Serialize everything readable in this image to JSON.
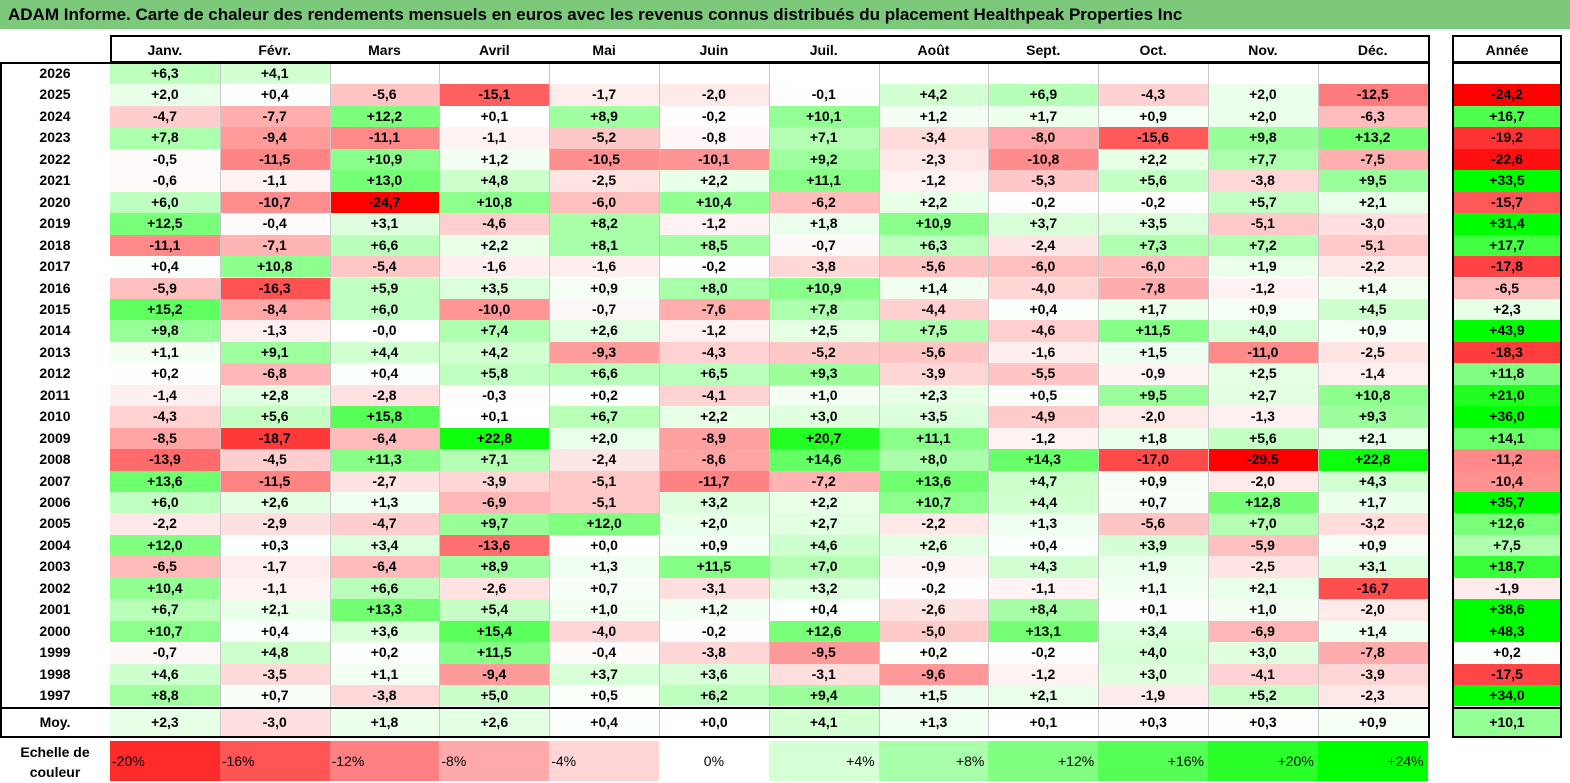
{
  "title": "ADAM Informe. Carte de chaleur des rendements mensuels en euros avec les revenus connus distribués du placement Healthpeak Properties Inc",
  "chart_data": {
    "type": "heatmap",
    "columns": [
      "Janv.",
      "Févr.",
      "Mars",
      "Avril",
      "Mai",
      "Juin",
      "Juil.",
      "Août",
      "Sept.",
      "Oct.",
      "Nov.",
      "Déc."
    ],
    "year_column": "Année",
    "rows": [
      {
        "label": "2026",
        "values": [
          "+6,3",
          "+4,1",
          "",
          "",
          "",
          "",
          "",
          "",
          "",
          "",
          "",
          ""
        ],
        "year": ""
      },
      {
        "label": "2025",
        "values": [
          "+2,0",
          "+0,4",
          "-5,6",
          "-15,1",
          "-1,7",
          "-2,0",
          "-0,1",
          "+4,2",
          "+6,9",
          "-4,3",
          "+2,0",
          "-12,5"
        ],
        "year": "-24,2"
      },
      {
        "label": "2024",
        "values": [
          "-4,7",
          "-7,7",
          "+12,2",
          "+0,1",
          "+8,9",
          "-0,2",
          "+10,1",
          "+1,2",
          "+1,7",
          "+0,9",
          "+2,0",
          "-6,3"
        ],
        "year": "+16,7"
      },
      {
        "label": "2023",
        "values": [
          "+7,8",
          "-9,4",
          "-11,1",
          "-1,1",
          "-5,2",
          "-0,8",
          "+7,1",
          "-3,4",
          "-8,0",
          "-15,6",
          "+9,8",
          "+13,2"
        ],
        "year": "-19,2"
      },
      {
        "label": "2022",
        "values": [
          "-0,5",
          "-11,5",
          "+10,9",
          "+1,2",
          "-10,5",
          "-10,1",
          "+9,2",
          "-2,3",
          "-10,8",
          "+2,2",
          "+7,7",
          "-7,5"
        ],
        "year": "-22,6"
      },
      {
        "label": "2021",
        "values": [
          "-0,6",
          "-1,1",
          "+13,0",
          "+4,8",
          "-2,5",
          "+2,2",
          "+11,1",
          "-1,2",
          "-5,3",
          "+5,6",
          "-3,8",
          "+9,5"
        ],
        "year": "+33,5"
      },
      {
        "label": "2020",
        "values": [
          "+6,0",
          "-10,7",
          "-24,7",
          "+10,8",
          "-6,0",
          "+10,4",
          "-6,2",
          "+2,2",
          "-0,2",
          "-0,2",
          "+5,7",
          "+2,1"
        ],
        "year": "-15,7"
      },
      {
        "label": "2019",
        "values": [
          "+12,5",
          "-0,4",
          "+3,1",
          "-4,6",
          "+8,2",
          "-1,2",
          "+1,8",
          "+10,9",
          "+3,7",
          "+3,5",
          "-5,1",
          "-3,0"
        ],
        "year": "+31,4"
      },
      {
        "label": "2018",
        "values": [
          "-11,1",
          "-7,1",
          "+6,6",
          "+2,2",
          "+8,1",
          "+8,5",
          "-0,7",
          "+6,3",
          "-2,4",
          "+7,3",
          "+7,2",
          "-5,1"
        ],
        "year": "+17,7"
      },
      {
        "label": "2017",
        "values": [
          "+0,4",
          "+10,8",
          "-5,4",
          "-1,6",
          "-1,6",
          "-0,2",
          "-3,8",
          "-5,6",
          "-6,0",
          "-6,0",
          "+1,9",
          "-2,2"
        ],
        "year": "-17,8"
      },
      {
        "label": "2016",
        "values": [
          "-5,9",
          "-16,3",
          "+5,9",
          "+3,5",
          "+0,9",
          "+8,0",
          "+10,9",
          "+1,4",
          "-4,0",
          "-7,8",
          "-1,2",
          "+1,4"
        ],
        "year": "-6,5"
      },
      {
        "label": "2015",
        "values": [
          "+15,2",
          "-8,4",
          "+6,0",
          "-10,0",
          "-0,7",
          "-7,6",
          "+7,8",
          "-4,4",
          "+0,4",
          "+1,7",
          "+0,9",
          "+4,5"
        ],
        "year": "+2,3"
      },
      {
        "label": "2014",
        "values": [
          "+9,8",
          "-1,3",
          "-0,0",
          "+7,4",
          "+2,6",
          "-1,2",
          "+2,5",
          "+7,5",
          "-4,6",
          "+11,5",
          "+4,0",
          "+0,9"
        ],
        "year": "+43,9"
      },
      {
        "label": "2013",
        "values": [
          "+1,1",
          "+9,1",
          "+4,4",
          "+4,2",
          "-9,3",
          "-4,3",
          "-5,2",
          "-5,6",
          "-1,6",
          "+1,5",
          "-11,0",
          "-2,5"
        ],
        "year": "-18,3"
      },
      {
        "label": "2012",
        "values": [
          "+0,2",
          "-6,8",
          "+0,4",
          "+5,8",
          "+6,6",
          "+6,5",
          "+9,3",
          "-3,9",
          "-5,5",
          "-0,9",
          "+2,5",
          "-1,4"
        ],
        "year": "+11,8"
      },
      {
        "label": "2011",
        "values": [
          "-1,4",
          "+2,8",
          "-2,8",
          "-0,3",
          "+0,2",
          "-4,1",
          "+1,0",
          "+2,3",
          "+0,5",
          "+9,5",
          "+2,7",
          "+10,8"
        ],
        "year": "+21,0"
      },
      {
        "label": "2010",
        "values": [
          "-4,3",
          "+5,6",
          "+15,8",
          "+0,1",
          "+6,7",
          "+2,2",
          "+3,0",
          "+3,5",
          "-4,9",
          "-2,0",
          "-1,3",
          "+9,3"
        ],
        "year": "+36,0"
      },
      {
        "label": "2009",
        "values": [
          "-8,5",
          "-18,7",
          "-6,4",
          "+22,8",
          "+2,0",
          "-8,9",
          "+20,7",
          "+11,1",
          "-1,2",
          "+1,8",
          "+5,6",
          "+2,1"
        ],
        "year": "+14,1"
      },
      {
        "label": "2008",
        "values": [
          "-13,9",
          "-4,5",
          "+11,3",
          "+7,1",
          "-2,4",
          "-8,6",
          "+14,6",
          "+8,0",
          "+14,3",
          "-17,0",
          "-29,5",
          "+22,8"
        ],
        "year": "-11,2"
      },
      {
        "label": "2007",
        "values": [
          "+13,6",
          "-11,5",
          "-2,7",
          "-3,9",
          "-5,1",
          "-11,7",
          "-7,2",
          "+13,6",
          "+4,7",
          "+0,9",
          "-2,0",
          "+4,3"
        ],
        "year": "-10,4"
      },
      {
        "label": "2006",
        "values": [
          "+6,0",
          "+2,6",
          "+1,3",
          "-6,9",
          "-5,1",
          "+3,2",
          "+2,2",
          "+10,7",
          "+4,4",
          "+0,7",
          "+12,8",
          "+1,7"
        ],
        "year": "+35,7"
      },
      {
        "label": "2005",
        "values": [
          "-2,2",
          "-2,9",
          "-4,7",
          "+9,7",
          "+12,0",
          "+2,0",
          "+2,7",
          "-2,2",
          "+1,3",
          "-5,6",
          "+7,0",
          "-3,2"
        ],
        "year": "+12,6"
      },
      {
        "label": "2004",
        "values": [
          "+12,0",
          "+0,3",
          "+3,4",
          "-13,6",
          "+0,0",
          "+0,9",
          "+4,6",
          "+2,6",
          "+0,4",
          "+3,9",
          "-5,9",
          "+0,9"
        ],
        "year": "+7,5"
      },
      {
        "label": "2003",
        "values": [
          "-6,5",
          "-1,7",
          "-6,4",
          "+8,9",
          "+1,3",
          "+11,5",
          "+7,0",
          "-0,9",
          "+4,3",
          "+1,9",
          "-2,5",
          "+3,1"
        ],
        "year": "+18,7"
      },
      {
        "label": "2002",
        "values": [
          "+10,4",
          "-1,1",
          "+6,6",
          "-2,6",
          "+0,7",
          "-3,1",
          "+3,2",
          "-0,2",
          "-1,1",
          "+1,1",
          "+2,1",
          "-16,7"
        ],
        "year": "-1,9"
      },
      {
        "label": "2001",
        "values": [
          "+6,7",
          "+2,1",
          "+13,3",
          "+5,4",
          "+1,0",
          "+1,2",
          "+0,4",
          "-2,6",
          "+8,4",
          "+0,1",
          "+1,0",
          "-2,0"
        ],
        "year": "+38,6"
      },
      {
        "label": "2000",
        "values": [
          "+10,7",
          "+0,4",
          "+3,6",
          "+15,4",
          "-4,0",
          "-0,2",
          "+12,6",
          "-5,0",
          "+13,1",
          "+3,4",
          "-6,9",
          "+1,4"
        ],
        "year": "+48,3"
      },
      {
        "label": "1999",
        "values": [
          "-0,7",
          "+4,8",
          "+0,2",
          "+11,5",
          "-0,4",
          "-3,8",
          "-9,5",
          "+0,2",
          "-0,2",
          "+4,0",
          "+3,0",
          "-7,8"
        ],
        "year": "+0,2"
      },
      {
        "label": "1998",
        "values": [
          "+4,6",
          "-3,5",
          "+1,1",
          "-9,4",
          "+3,7",
          "+3,6",
          "-3,1",
          "-9,6",
          "-1,2",
          "+3,0",
          "-4,1",
          "-3,9"
        ],
        "year": "-17,5"
      },
      {
        "label": "1997",
        "values": [
          "+8,8",
          "+0,7",
          "-3,8",
          "+5,0",
          "+0,5",
          "+6,2",
          "+9,4",
          "+1,5",
          "+2,1",
          "-1,9",
          "+5,2",
          "-2,3"
        ],
        "year": "+34,0"
      }
    ],
    "average_row": {
      "label": "Moy.",
      "values": [
        "+2,3",
        "-3,0",
        "+1,8",
        "+2,6",
        "+0,4",
        "+0,0",
        "+4,1",
        "+1,3",
        "+0,1",
        "+0,3",
        "+0,3",
        "+0,9"
      ],
      "year": "+10,1"
    },
    "scale": {
      "label": "Echelle de couleur",
      "stops": [
        "-20%",
        "-16%",
        "-12%",
        "-8%",
        "-4%",
        "0%",
        "+4%",
        "+8%",
        "+12%",
        "+16%",
        "+20%",
        "+24%"
      ]
    },
    "colors": {
      "negative_max": "#ff0000",
      "neutral": "#ffffff",
      "positive_max": "#00ff00",
      "title_bar": "#7cc97c"
    }
  }
}
